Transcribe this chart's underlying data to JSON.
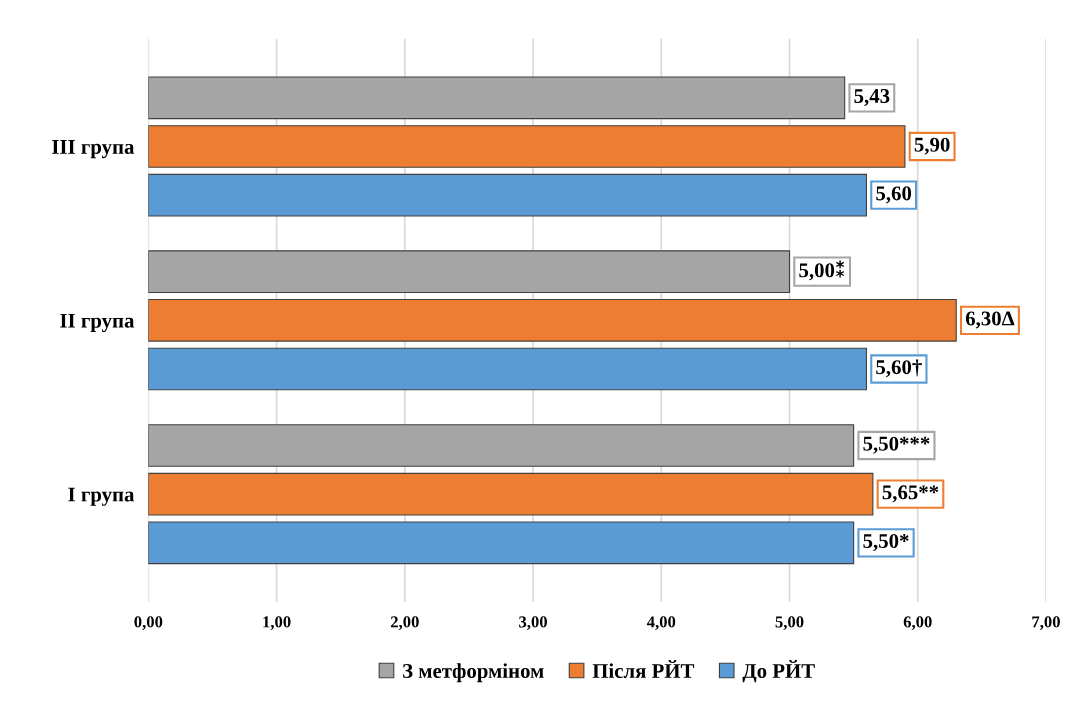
{
  "chart_data": {
    "type": "bar",
    "orientation": "horizontal",
    "categories": [
      "III група",
      "II група",
      "I група"
    ],
    "series": [
      {
        "name": "З метформіном",
        "color": "#a5a5a5",
        "values": [
          5.43,
          5.0,
          5.5
        ],
        "value_labels": [
          "5,43",
          "5,00⁑",
          "5,50***"
        ]
      },
      {
        "name": "Після РЙТ",
        "color": "#ed7d31",
        "values": [
          5.9,
          6.3,
          5.65
        ],
        "value_labels": [
          "5,90",
          "6,30Δ",
          "5,65**"
        ]
      },
      {
        "name": "До РЙТ",
        "color": "#5b9bd5",
        "values": [
          5.6,
          5.6,
          5.5
        ],
        "value_labels": [
          "5,60",
          "5,60†",
          "5,50*"
        ]
      }
    ],
    "xlim": [
      0,
      7
    ],
    "xticks": [
      {
        "value": 0,
        "label": "0,00"
      },
      {
        "value": 1,
        "label": "1,00"
      },
      {
        "value": 2,
        "label": "2,00"
      },
      {
        "value": 3,
        "label": "3,00"
      },
      {
        "value": 4,
        "label": "4,00"
      },
      {
        "value": 5,
        "label": "5,00"
      },
      {
        "value": 6,
        "label": "6,00"
      },
      {
        "value": 7,
        "label": "7,00"
      }
    ],
    "grid": "x",
    "legend": "bottom"
  }
}
